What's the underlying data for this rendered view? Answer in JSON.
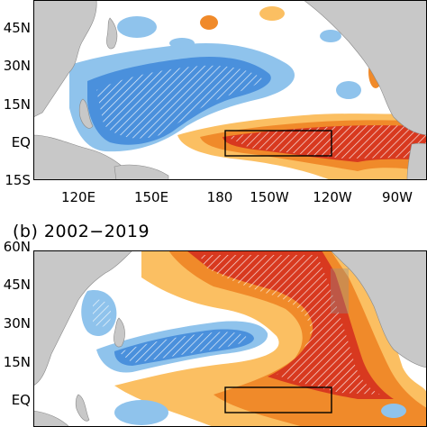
{
  "panels": [
    {
      "id": "a",
      "title": "",
      "lat_labels": [
        "45N",
        "30N",
        "15N",
        "EQ",
        "15S"
      ],
      "lon_labels": [
        "120E",
        "150E",
        "180",
        "150W",
        "120W",
        "90W"
      ],
      "box": {
        "lon_west": "170W",
        "lon_east": "120W",
        "lat_south": "5S",
        "lat_north": "5N"
      }
    },
    {
      "id": "b",
      "title": "(b) 2002−2019",
      "lat_labels": [
        "60N",
        "45N",
        "30N",
        "15N",
        "EQ"
      ],
      "lon_labels": [],
      "box": {
        "lon_west": "170W",
        "lon_east": "120W",
        "lat_south": "5S",
        "lat_north": "5N"
      }
    }
  ],
  "colors": {
    "land": "#c8c8c8",
    "ocean": "#ffffff",
    "light_blue": "#8fc3ec",
    "mid_blue": "#4a90dc",
    "light_orange": "#fbbf62",
    "orange": "#f08a2a",
    "red": "#d8391f",
    "dark_red": "#9e2218"
  }
}
